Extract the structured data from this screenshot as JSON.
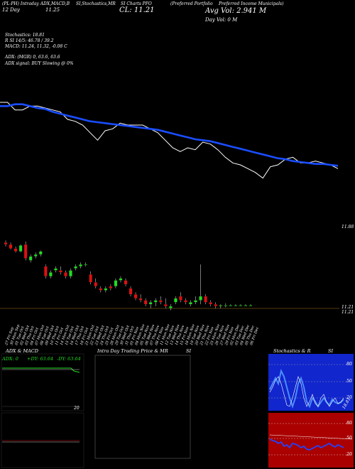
{
  "header": {
    "title_left": "(PL-PH) Intraday ADX,MACD,B",
    "title_mid": "SI,Stochastics,MR",
    "title_c": "SI Charts PFO",
    "title_right_a": "(Preferred Portfolio",
    "title_right_b": "Preferred Income Municipals)",
    "day_line": "12 Day",
    "day_value": "11.25",
    "cl_label": "CL: 11.21",
    "avg_vol": "Avg Vol: 2.941 M",
    "day_vol": "Day Vol: 0   M"
  },
  "indicators": {
    "stoch": "Stochastics: 18.81",
    "r_line": "R                     SI 14/5: 46.78  / 39.2",
    "macd": "MACD: 11.24,  11.32,  -0.08  C",
    "adx": "ADX:                                  (MGR) 0,  63.6,  63.6",
    "adx_signal": "ADX  signal:                                    BUY Slowing @ 0%"
  },
  "chart_data": [
    {
      "type": "line",
      "series": [
        {
          "values": [
            11.62,
            11.62,
            11.54,
            11.54,
            11.58,
            11.58,
            11.56,
            11.54,
            11.52,
            11.44,
            11.42,
            11.38,
            11.3,
            11.22,
            11.32,
            11.34,
            11.4,
            11.38,
            11.38,
            11.38,
            11.34,
            11.3,
            11.22,
            11.14,
            11.1,
            11.14,
            11.12,
            11.2,
            11.18,
            11.12,
            11.04,
            10.98,
            10.96,
            10.92,
            10.88,
            10.82,
            10.94,
            10.96,
            11.02,
            11.04,
            10.98,
            10.98,
            11.0,
            10.98,
            10.96,
            10.92
          ]
        },
        {
          "values": [
            11.58,
            11.58,
            11.6,
            11.6,
            11.58,
            11.56,
            11.55,
            11.52,
            11.5,
            11.48,
            11.46,
            11.44,
            11.42,
            11.41,
            11.4,
            11.39,
            11.38,
            11.37,
            11.36,
            11.35,
            11.34,
            11.33,
            11.31,
            11.29,
            11.27,
            11.25,
            11.23,
            11.22,
            11.21,
            11.19,
            11.17,
            11.15,
            11.13,
            11.11,
            11.09,
            11.07,
            11.05,
            11.03,
            11.02,
            11.0,
            10.99,
            10.98,
            10.97,
            10.97,
            10.96,
            10.95
          ]
        }
      ]
    },
    {
      "type": "candlestick",
      "price_label_top": "11.88",
      "price_label_bottom": "11.21",
      "price_label_bottom2": "11.21",
      "categories": [
        "27 Fri Sep",
        "30 Mon Sep",
        "01 Tue Oct",
        "02 Wed Oct",
        "03 Thu Oct",
        "04 Fri Oct",
        "07 Mon Oct",
        "08 Tue Oct",
        "09 Wed Oct",
        "10 Thu Oct",
        "11 Fri Oct",
        "14 Mon Oct",
        "15 Tue Oct",
        "16 Wed Oct",
        "17 Thu Oct",
        "18 Fri Oct",
        "21 Mon Oct",
        "22 Tue Oct",
        "23 Wed Oct",
        "24 Thu Oct",
        "25 Fri Oct",
        "28 Mon Oct",
        "29 Tue Oct",
        "30 Wed Oct",
        "31 Thu Oct",
        "01 Fri Nov",
        "04 Mon Nov",
        "05 Tue Nov",
        "06 Wed Nov",
        "07 Thu Nov",
        "08 Fri Nov",
        "11 Mon Nov",
        "12 Tue Nov",
        "13 Wed Nov",
        "14 Thu Nov",
        "15 Fri Nov",
        "18 Mon Nov",
        "19 Tue Nov",
        "20 Wed Nov",
        "21 Thu Nov",
        "22 Fri Nov",
        "25 Mon Nov",
        "26 Tue Nov",
        "27 Wed Nov",
        "29 Fri Nov",
        "02 Mon Dec",
        "03 Tue Dec",
        "04 Wed Dec",
        "05 Thu Dec",
        "06 Fri Dec"
      ],
      "candles": [
        [
          11.84,
          11.86,
          11.8,
          11.82
        ],
        [
          11.82,
          11.84,
          11.77,
          11.78
        ],
        [
          11.78,
          11.8,
          11.74,
          11.75
        ],
        [
          11.75,
          11.82,
          11.74,
          11.81
        ],
        [
          11.82,
          11.85,
          11.66,
          11.68
        ],
        [
          11.66,
          11.72,
          11.64,
          11.7
        ],
        [
          11.7,
          11.74,
          11.68,
          11.72
        ],
        [
          11.72,
          11.76,
          11.7,
          11.75
        ],
        [
          11.6,
          11.62,
          11.48,
          11.5
        ],
        [
          11.5,
          11.56,
          11.48,
          11.54
        ],
        [
          11.56,
          11.6,
          11.54,
          11.58
        ],
        [
          11.56,
          11.6,
          11.52,
          11.54
        ],
        [
          11.54,
          11.56,
          11.48,
          11.5
        ],
        [
          11.5,
          11.58,
          11.48,
          11.56
        ],
        [
          11.58,
          11.62,
          11.56,
          11.6
        ],
        [
          11.6,
          11.64,
          11.58,
          11.62
        ],
        [
          11.62,
          11.64,
          11.6,
          11.62
        ],
        [
          11.52,
          11.55,
          11.42,
          11.44
        ],
        [
          11.44,
          11.48,
          11.38,
          11.4
        ],
        [
          11.38,
          11.4,
          11.34,
          11.36
        ],
        [
          11.36,
          11.4,
          11.34,
          11.38
        ],
        [
          11.4,
          11.42,
          11.36,
          11.38
        ],
        [
          11.4,
          11.48,
          11.38,
          11.46
        ],
        [
          11.46,
          11.5,
          11.44,
          11.48
        ],
        [
          11.46,
          11.48,
          11.4,
          11.42
        ],
        [
          11.38,
          11.4,
          11.3,
          11.32
        ],
        [
          11.32,
          11.34,
          11.26,
          11.28
        ],
        [
          11.28,
          11.32,
          11.24,
          11.26
        ],
        [
          11.26,
          11.28,
          11.2,
          11.22
        ],
        [
          11.22,
          11.26,
          11.18,
          11.24
        ],
        [
          11.24,
          11.28,
          11.2,
          11.26
        ],
        [
          11.26,
          11.3,
          11.22,
          11.24
        ],
        [
          11.22,
          11.28,
          11.18,
          11.2
        ],
        [
          11.18,
          11.22,
          11.16,
          11.2
        ],
        [
          11.24,
          11.3,
          11.22,
          11.28
        ],
        [
          11.3,
          11.34,
          11.24,
          11.26
        ],
        [
          11.26,
          11.28,
          11.22,
          11.24
        ],
        [
          11.22,
          11.26,
          11.2,
          11.24
        ],
        [
          11.24,
          11.3,
          11.22,
          11.26
        ],
        [
          11.26,
          11.62,
          11.22,
          11.3
        ],
        [
          11.3,
          11.32,
          11.22,
          11.24
        ],
        [
          11.24,
          11.26,
          11.2,
          11.22
        ],
        [
          11.22,
          11.24,
          11.18,
          11.2
        ],
        [
          11.2,
          11.22,
          11.18,
          11.21
        ],
        [
          11.21,
          11.23,
          11.19,
          11.21
        ],
        [
          11.21,
          11.22,
          11.2,
          11.21
        ],
        [
          11.21,
          11.22,
          11.2,
          11.21
        ],
        [
          11.21,
          11.22,
          11.2,
          11.21
        ],
        [
          11.21,
          11.22,
          11.2,
          11.21
        ],
        [
          11.21,
          11.22,
          11.2,
          11.21
        ]
      ]
    }
  ],
  "panels": {
    "adx_title": "ADX  & MACD",
    "adx_readout_a": "ADX: 0",
    "adx_readout_b": "+DY: 63.64",
    "adx_readout_c": "-DY: 63.64",
    "intra_title": "Intra  Day Trading Price  & MR",
    "si_label_1": "SI",
    "stoch_title": "Stochastics & R",
    "si_label_2": "SI",
    "stoch_ticks": [
      "80",
      "50",
      "20"
    ],
    "rsi_ticks": [
      "80",
      "50",
      "20"
    ],
    "stoch_last": "18.81",
    "adx_corner": "20"
  },
  "colors": {
    "blue": "#1a4dff",
    "red": "#dd1111",
    "green": "#22dd22",
    "white": "#ffffff"
  }
}
